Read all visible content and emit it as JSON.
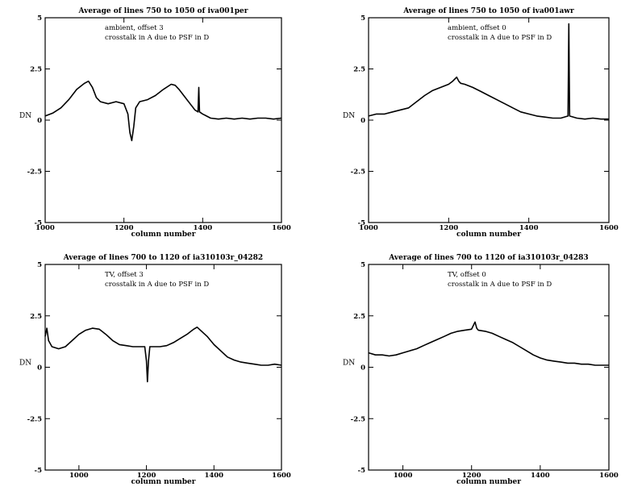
{
  "chart_data": [
    {
      "type": "line",
      "title": "Average of lines 750 to 1050 of iva001per",
      "xlabel": "column number",
      "ylabel": "DN",
      "xlim": [
        1000,
        1600
      ],
      "ylim": [
        -5,
        5
      ],
      "xticks": [
        1000,
        1200,
        1400,
        1600
      ],
      "yticks": [
        5,
        2.5,
        0,
        -2.5,
        -5
      ],
      "ytick_labels": [
        "5",
        "2.5",
        "0",
        "-2.5",
        "-5"
      ],
      "annotations": [
        "ambient, offset 3",
        "crosstalk in A due to PSF in D"
      ],
      "series": [
        {
          "color": "#000000",
          "x": [
            1000,
            1020,
            1040,
            1060,
            1080,
            1100,
            1110,
            1120,
            1130,
            1140,
            1160,
            1180,
            1200,
            1210,
            1215,
            1220,
            1225,
            1230,
            1240,
            1260,
            1280,
            1300,
            1320,
            1330,
            1340,
            1360,
            1380,
            1388,
            1390,
            1392,
            1400,
            1420,
            1440,
            1460,
            1480,
            1500,
            1520,
            1540,
            1560,
            1580,
            1600
          ],
          "y": [
            0.2,
            0.35,
            0.6,
            1.0,
            1.5,
            1.8,
            1.9,
            1.6,
            1.1,
            0.9,
            0.8,
            0.9,
            0.8,
            0.3,
            -0.6,
            -1.0,
            -0.3,
            0.6,
            0.9,
            1.0,
            1.2,
            1.5,
            1.75,
            1.7,
            1.5,
            1.0,
            0.5,
            0.4,
            1.6,
            0.4,
            0.3,
            0.1,
            0.05,
            0.1,
            0.05,
            0.1,
            0.05,
            0.1,
            0.1,
            0.05,
            0.1
          ]
        }
      ]
    },
    {
      "type": "line",
      "title": "Average of lines 750 to 1050 of iva001awr",
      "xlabel": "column number",
      "ylabel": "DN",
      "xlim": [
        1000,
        1600
      ],
      "ylim": [
        -5,
        5
      ],
      "xticks": [
        1000,
        1200,
        1400,
        1600
      ],
      "yticks": [
        5,
        2.5,
        0,
        -2.5,
        -5
      ],
      "ytick_labels": [
        "5",
        "2.5",
        "0",
        "-2.5",
        "-5"
      ],
      "annotations": [
        "ambient, offset 0",
        "crosstalk in A due to PSF in D"
      ],
      "series": [
        {
          "color": "#000000",
          "x": [
            1000,
            1020,
            1040,
            1060,
            1080,
            1100,
            1120,
            1140,
            1160,
            1180,
            1200,
            1210,
            1220,
            1225,
            1230,
            1240,
            1260,
            1280,
            1300,
            1320,
            1340,
            1360,
            1380,
            1400,
            1420,
            1440,
            1460,
            1480,
            1498,
            1500,
            1502,
            1520,
            1540,
            1560,
            1580,
            1600
          ],
          "y": [
            0.2,
            0.3,
            0.3,
            0.4,
            0.5,
            0.6,
            0.9,
            1.2,
            1.45,
            1.6,
            1.75,
            1.9,
            2.1,
            1.9,
            1.8,
            1.75,
            1.6,
            1.4,
            1.2,
            1.0,
            0.8,
            0.6,
            0.4,
            0.3,
            0.2,
            0.15,
            0.1,
            0.1,
            0.2,
            4.7,
            0.2,
            0.1,
            0.05,
            0.1,
            0.05,
            0.05
          ]
        }
      ]
    },
    {
      "type": "line",
      "title": "Average of lines 700 to 1120 of ia310103r_04282",
      "xlabel": "column number",
      "ylabel": "DN",
      "xlim": [
        900,
        1600
      ],
      "ylim": [
        -5,
        5
      ],
      "xticks": [
        1000,
        1200,
        1400,
        1600
      ],
      "yticks": [
        5,
        2.5,
        0,
        -2.5,
        -5
      ],
      "ytick_labels": [
        "5",
        "2.5",
        "0",
        "-2.5",
        "-5"
      ],
      "annotations": [
        "TV, offset 3",
        "crosstalk in A due to PSF in D"
      ],
      "series": [
        {
          "color": "#000000",
          "x": [
            900,
            905,
            910,
            920,
            940,
            960,
            980,
            1000,
            1020,
            1040,
            1060,
            1080,
            1100,
            1120,
            1140,
            1160,
            1180,
            1195,
            1200,
            1203,
            1206,
            1210,
            1220,
            1240,
            1260,
            1280,
            1300,
            1320,
            1340,
            1350,
            1360,
            1380,
            1400,
            1420,
            1440,
            1460,
            1480,
            1500,
            1520,
            1540,
            1560,
            1580,
            1600
          ],
          "y": [
            1.5,
            1.9,
            1.3,
            1.0,
            0.9,
            1.0,
            1.3,
            1.6,
            1.8,
            1.9,
            1.85,
            1.6,
            1.3,
            1.1,
            1.05,
            1.0,
            1.0,
            1.0,
            0.3,
            -0.7,
            0.3,
            1.0,
            1.0,
            1.0,
            1.05,
            1.2,
            1.4,
            1.6,
            1.85,
            1.95,
            1.8,
            1.5,
            1.1,
            0.8,
            0.5,
            0.35,
            0.25,
            0.2,
            0.15,
            0.1,
            0.1,
            0.15,
            0.1
          ]
        }
      ]
    },
    {
      "type": "line",
      "title": "Average of lines 700 to 1120 of ia310103r_04283",
      "xlabel": "column number",
      "ylabel": "DN",
      "xlim": [
        900,
        1600
      ],
      "ylim": [
        -5,
        5
      ],
      "xticks": [
        1000,
        1200,
        1400,
        1600
      ],
      "yticks": [
        5,
        2.5,
        0,
        -2.5,
        -5
      ],
      "ytick_labels": [
        "5",
        "2.5",
        "0",
        "-2.5",
        "-5"
      ],
      "annotations": [
        "TV, offset 0",
        "crosstalk in A due to PSF in D"
      ],
      "series": [
        {
          "color": "#000000",
          "x": [
            900,
            920,
            940,
            960,
            980,
            1000,
            1020,
            1040,
            1060,
            1080,
            1100,
            1120,
            1140,
            1160,
            1180,
            1200,
            1210,
            1215,
            1220,
            1240,
            1260,
            1280,
            1300,
            1320,
            1340,
            1360,
            1380,
            1400,
            1420,
            1440,
            1460,
            1480,
            1500,
            1520,
            1540,
            1560,
            1580,
            1600
          ],
          "y": [
            0.7,
            0.6,
            0.6,
            0.55,
            0.6,
            0.7,
            0.8,
            0.9,
            1.05,
            1.2,
            1.35,
            1.5,
            1.65,
            1.75,
            1.8,
            1.85,
            2.2,
            1.9,
            1.8,
            1.75,
            1.65,
            1.5,
            1.35,
            1.2,
            1.0,
            0.8,
            0.6,
            0.45,
            0.35,
            0.3,
            0.25,
            0.2,
            0.2,
            0.15,
            0.15,
            0.1,
            0.1,
            0.1
          ]
        }
      ]
    }
  ]
}
